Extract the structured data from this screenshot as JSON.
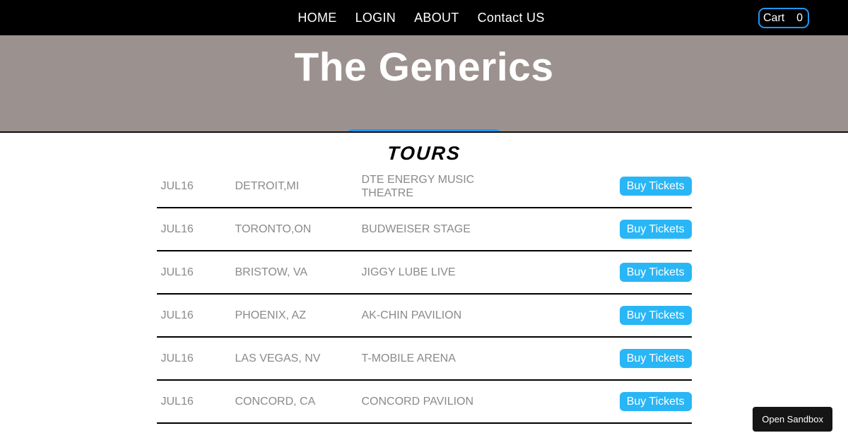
{
  "nav": {
    "links": [
      {
        "label": "HOME"
      },
      {
        "label": "LOGIN"
      },
      {
        "label": "ABOUT"
      },
      {
        "label": "Contact US"
      }
    ],
    "cart": {
      "label": "Cart",
      "count": "0"
    }
  },
  "hero": {
    "title": "The Generics"
  },
  "tours": {
    "heading": "TOURS",
    "buy_label": "Buy Tickets",
    "rows": [
      {
        "date": "JUL16",
        "city": "DETROIT,MI",
        "venue": "DTE ENERGY MUSIC THEATRE"
      },
      {
        "date": "JUL16",
        "city": "TORONTO,ON",
        "venue": "BUDWEISER STAGE"
      },
      {
        "date": "JUL16",
        "city": "BRISTOW, VA",
        "venue": "JIGGY LUBE LIVE"
      },
      {
        "date": "JUL16",
        "city": "PHOENIX, AZ",
        "venue": "AK-CHIN PAVILION"
      },
      {
        "date": "JUL16",
        "city": "LAS VEGAS, NV",
        "venue": "T-MOBILE ARENA"
      },
      {
        "date": "JUL16",
        "city": "CONCORD, CA",
        "venue": "CONCORD PAVILION"
      }
    ]
  },
  "sandbox_button": {
    "label": "Open Sandbox"
  },
  "colors": {
    "accent_blue": "#2196f3",
    "buy_blue": "#29b6f6",
    "hero_bg": "#9b918f",
    "row_text": "#8a8a8a"
  }
}
